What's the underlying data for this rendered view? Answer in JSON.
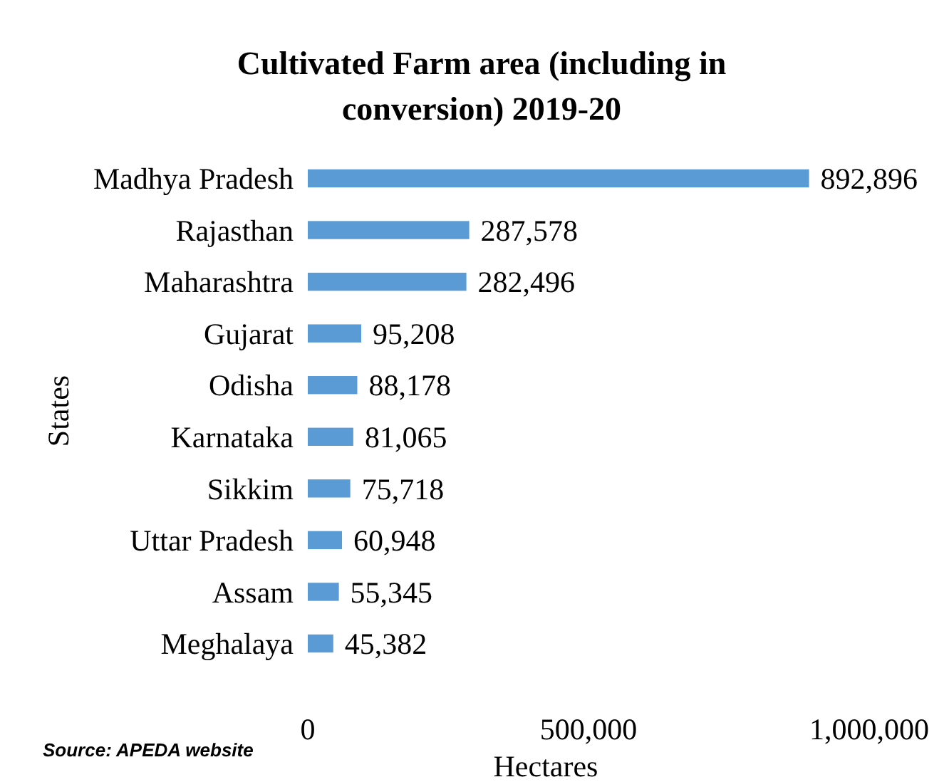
{
  "chart_data": {
    "type": "bar",
    "orientation": "horizontal",
    "title": "Cultivated Farm area (including in conversion) 2019-20",
    "xlabel": "Hectares",
    "ylabel": "States",
    "categories": [
      "Madhya Pradesh",
      "Rajasthan",
      "Maharashtra",
      "Gujarat",
      "Odisha",
      "Karnataka",
      "Sikkim",
      "Uttar Pradesh",
      "Assam",
      "Meghalaya"
    ],
    "values": [
      892896,
      287578,
      282496,
      95208,
      88178,
      81065,
      75718,
      60948,
      55345,
      45382
    ],
    "color": "#5b9bd5",
    "xlim": [
      0,
      1000000
    ],
    "xticks": [
      {
        "value": 0,
        "label": "0"
      },
      {
        "value": 500000,
        "label": "500,000"
      },
      {
        "value": 1000000,
        "label": "1,000,000"
      }
    ],
    "value_labels": [
      "892,896",
      "287,578",
      "282,496",
      "95,208",
      "88,178",
      "81,065",
      "75,718",
      "60,948",
      "55,345",
      "45,382"
    ],
    "grid": false,
    "annotations": [
      "Source: APEDA website"
    ]
  }
}
